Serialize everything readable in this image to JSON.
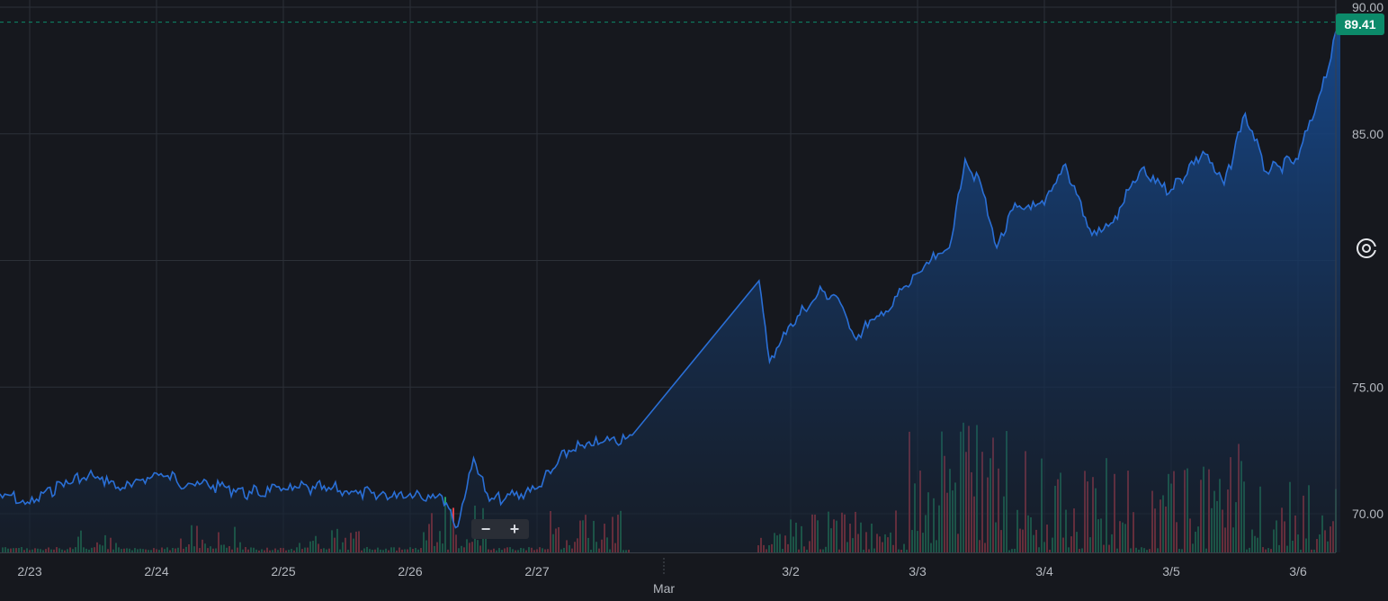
{
  "last_price": "89.41",
  "colors": {
    "background": "#16181e",
    "grid": "#2c3038",
    "line": "#2a6fd6",
    "area_top": "#164a90",
    "area_bottom": "#16202e",
    "volume_up": "#26a269",
    "volume_down": "#e0424b",
    "price_badge": "#0c8a6a",
    "axis_text": "#b4b8bf"
  },
  "controls": {
    "zoom_out": "−",
    "zoom_in": "+"
  },
  "chart_data": {
    "type": "area",
    "title": "",
    "xlabel": "",
    "ylabel": "",
    "ylim": [
      68.5,
      90
    ],
    "grid": true,
    "x_ticks": [
      "2/23",
      "2/24",
      "2/25",
      "2/26",
      "2/27",
      "Mar",
      "3/2",
      "3/3",
      "3/4",
      "3/5",
      "3/6"
    ],
    "y_ticks": [
      "90.00",
      "85.00",
      "75.00",
      "70.00"
    ],
    "series": [
      {
        "x": [
          "2/22 18:00",
          "2/23 00:00",
          "2/23 06:00",
          "2/23 12:00",
          "2/23 18:00",
          "2/24 00:00",
          "2/24 06:00",
          "2/24 12:00",
          "2/24 18:00",
          "2/25 00:00",
          "2/25 06:00",
          "2/25 12:00",
          "2/25 18:00",
          "2/26 00:00",
          "2/26 06:00",
          "2/26 09:00",
          "2/26 12:00",
          "2/26 15:00",
          "2/26 18:00",
          "2/27 00:00",
          "2/27 06:00",
          "2/27 12:00",
          "2/27 18:00",
          "3/1 18:00",
          "3/1 20:00",
          "3/2 00:00",
          "3/2 06:00",
          "3/2 09:00",
          "3/2 12:00",
          "3/2 18:00",
          "3/3 00:00",
          "3/3 06:00",
          "3/3 09:00",
          "3/3 12:00",
          "3/3 15:00",
          "3/3 18:00",
          "3/4 00:00",
          "3/4 04:00",
          "3/4 09:00",
          "3/4 13:00",
          "3/4 18:00",
          "3/5 00:00",
          "3/5 06:00",
          "3/5 10:00",
          "3/5 14:00",
          "3/5 18:00",
          "3/6 00:00",
          "3/6 04:00",
          "3/6 08:00"
        ],
        "y": [
          70.8,
          70.4,
          71.2,
          71.5,
          71.0,
          71.6,
          71.2,
          71.1,
          70.8,
          71.0,
          71.0,
          70.9,
          70.7,
          70.8,
          70.7,
          69.5,
          72.2,
          70.5,
          70.6,
          71.0,
          72.5,
          72.8,
          73.1,
          79.2,
          76.0,
          77.5,
          78.8,
          78.5,
          77.0,
          78.0,
          79.5,
          80.5,
          84.0,
          83.0,
          80.5,
          82.0,
          82.2,
          83.8,
          81.0,
          81.5,
          83.5,
          82.8,
          84.3,
          83.0,
          85.8,
          83.5,
          84.0,
          86.5,
          89.41
        ]
      }
    ],
    "volume": {
      "note": "volume histogram rendered at bottom",
      "scale_max": 5.3
    }
  }
}
